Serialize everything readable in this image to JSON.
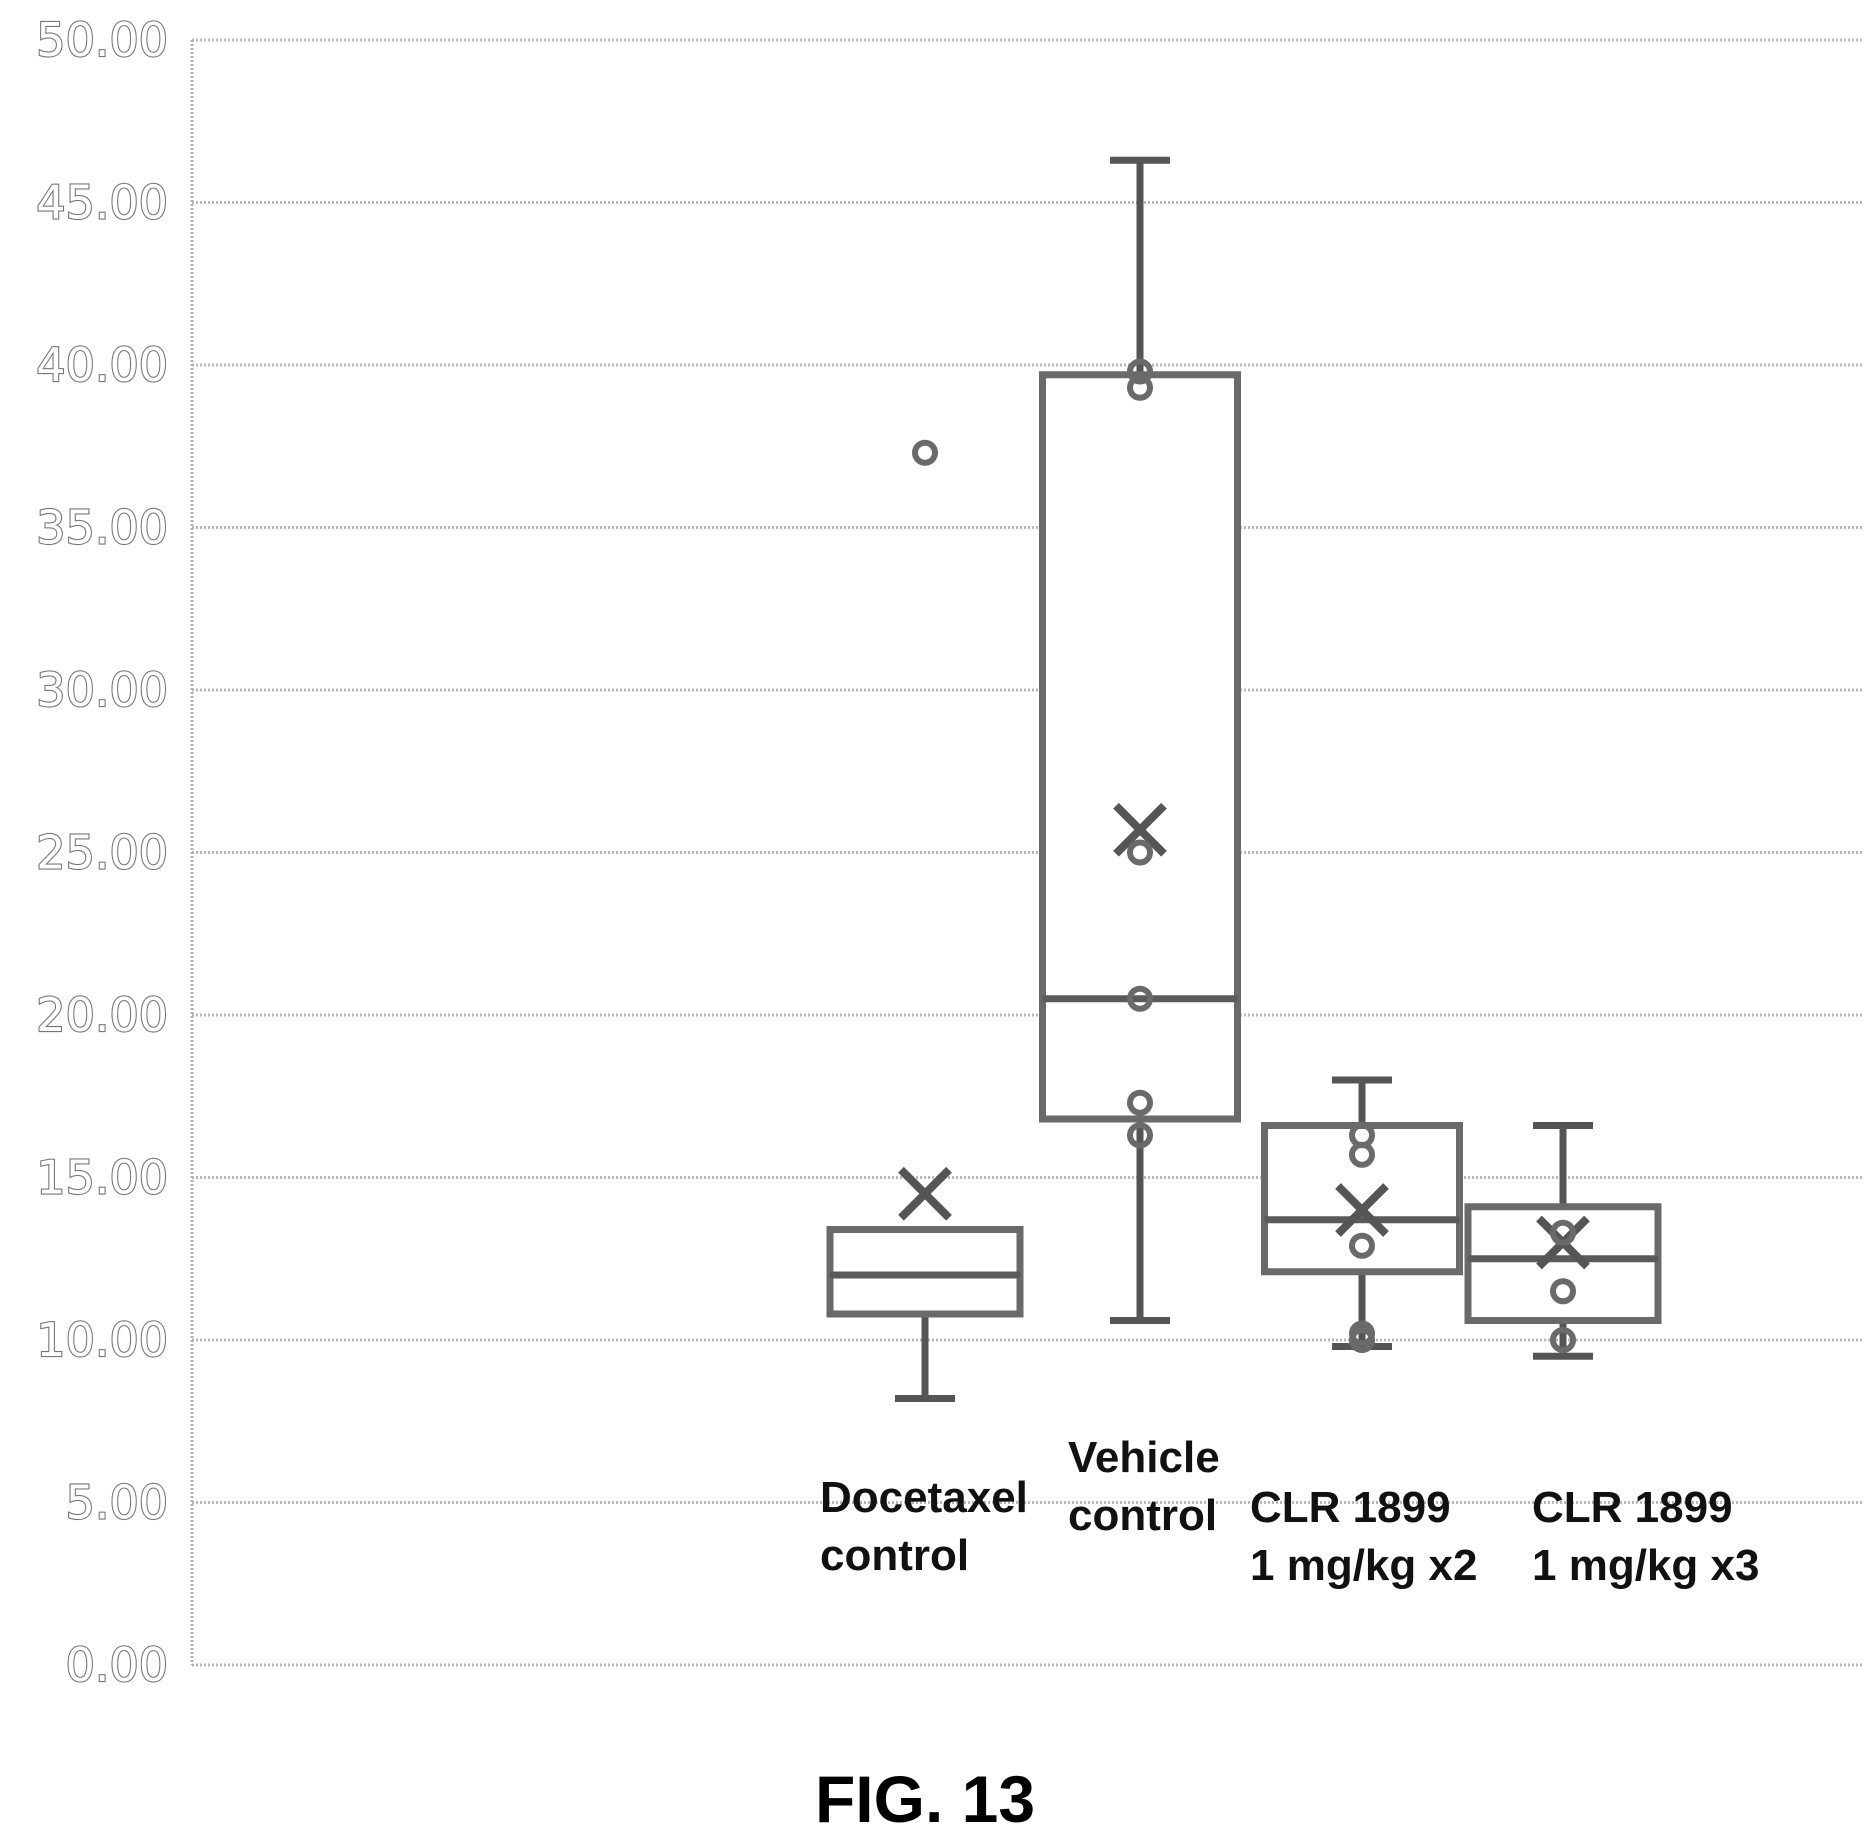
{
  "figure_label": "FIG. 13",
  "chart_data": {
    "type": "box",
    "title": "",
    "xlabel": "",
    "ylabel": "",
    "ylim": [
      0,
      50
    ],
    "yticks": [
      "0.00",
      "5.00",
      "10.00",
      "15.00",
      "20.00",
      "25.00",
      "30.00",
      "35.00",
      "40.00",
      "45.00",
      "50.00"
    ],
    "grid": true,
    "groups": [
      {
        "label_lines": [
          "Docetaxel",
          "control"
        ],
        "min": 8.2,
        "q1": 10.8,
        "median": 12.0,
        "q3": 13.4,
        "max": 13.4,
        "mean": 14.5,
        "points": [
          37.3
        ]
      },
      {
        "label_lines": [
          "Vehicle",
          "control"
        ],
        "min": 10.6,
        "q1": 16.8,
        "median": 20.5,
        "q3": 39.7,
        "max": 46.3,
        "mean": 25.7,
        "points": [
          39.3,
          39.8,
          25.0,
          20.5,
          17.3,
          16.3
        ]
      },
      {
        "label_lines": [
          "CLR 1899",
          "1 mg/kg x2"
        ],
        "min": 9.8,
        "q1": 12.1,
        "median": 13.7,
        "q3": 16.6,
        "max": 18.0,
        "mean": 14.0,
        "points": [
          16.3,
          15.7,
          12.9,
          10.2,
          10.0
        ]
      },
      {
        "label_lines": [
          "CLR 1899",
          "1 mg/kg x3"
        ],
        "min": 9.5,
        "q1": 10.6,
        "median": 12.5,
        "q3": 14.1,
        "max": 16.6,
        "mean": 13.0,
        "points": [
          13.3,
          11.5,
          10.0
        ]
      }
    ]
  }
}
